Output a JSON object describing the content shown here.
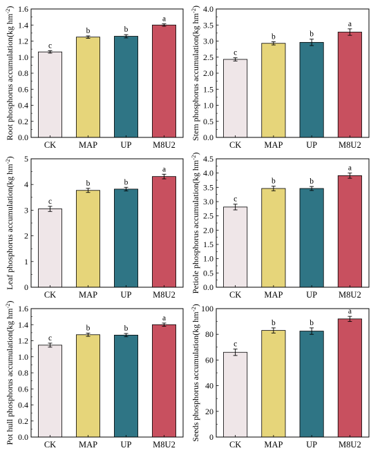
{
  "colors": {
    "CK": "#efe6e8",
    "MAP": "#e6d57a",
    "UP": "#2f7585",
    "M8U2": "#c8505f",
    "frame": "#000000"
  },
  "chart_data": [
    {
      "type": "bar",
      "categories": [
        "CK",
        "MAP",
        "UP",
        "M8U2"
      ],
      "values": [
        1.065,
        1.25,
        1.26,
        1.4
      ],
      "errors": [
        0.015,
        0.015,
        0.02,
        0.015
      ],
      "letters": [
        "c",
        "b",
        "b",
        "a"
      ],
      "ylabel_main": "Root phosphorus accumulation(kg hm",
      "ylabel_sup": "-2",
      "ylabel_end": ")",
      "ylim": [
        0,
        1.6
      ],
      "yticks": [
        0.0,
        0.2,
        0.4,
        0.6,
        0.8,
        1.0,
        1.2,
        1.4,
        1.6
      ],
      "ytick_labels": [
        "0.0",
        "0.2",
        "0.4",
        "0.6",
        "0.8",
        "1.0",
        "1.2",
        "1.4",
        "1.6"
      ]
    },
    {
      "type": "bar",
      "categories": [
        "CK",
        "MAP",
        "UP",
        "M8U2"
      ],
      "values": [
        2.43,
        2.93,
        2.96,
        3.28
      ],
      "errors": [
        0.05,
        0.05,
        0.1,
        0.1
      ],
      "letters": [
        "c",
        "b",
        "b",
        "a"
      ],
      "ylabel_main": "Stem phosphorus accumulation(kg hm",
      "ylabel_sup": "-2",
      "ylabel_end": ")",
      "ylim": [
        0,
        4.0
      ],
      "yticks": [
        0.0,
        0.5,
        1.0,
        1.5,
        2.0,
        2.5,
        3.0,
        3.5,
        4.0
      ],
      "ytick_labels": [
        "0.0",
        "0.5",
        "1.0",
        "1.5",
        "2.0",
        "2.5",
        "3.0",
        "3.5",
        "4.0"
      ]
    },
    {
      "type": "bar",
      "categories": [
        "CK",
        "MAP",
        "UP",
        "M8U2"
      ],
      "values": [
        3.05,
        3.77,
        3.82,
        4.31
      ],
      "errors": [
        0.1,
        0.08,
        0.07,
        0.09
      ],
      "letters": [
        "c",
        "b",
        "b",
        "a"
      ],
      "ylabel_main": "Leaf phosphorus accumulation(kg hm",
      "ylabel_sup": "-2",
      "ylabel_end": ")",
      "ylim": [
        0,
        5
      ],
      "yticks": [
        0,
        1,
        2,
        3,
        4,
        5
      ],
      "ytick_labels": [
        "0",
        "1",
        "2",
        "3",
        "4",
        "5"
      ]
    },
    {
      "type": "bar",
      "categories": [
        "CK",
        "MAP",
        "UP",
        "M8U2"
      ],
      "values": [
        2.81,
        3.46,
        3.46,
        3.91
      ],
      "errors": [
        0.1,
        0.08,
        0.07,
        0.09
      ],
      "letters": [
        "c",
        "b",
        "b",
        "a"
      ],
      "ylabel_main": "Petiole phosphorus accumulation(kg hm",
      "ylabel_sup": "-2",
      "ylabel_end": ")",
      "ylim": [
        0,
        4.5
      ],
      "yticks": [
        0.0,
        0.5,
        1.0,
        1.5,
        2.0,
        2.5,
        3.0,
        3.5,
        4.0,
        4.5
      ],
      "ytick_labels": [
        "0.0",
        "0.5",
        "1.0",
        "1.5",
        "2.0",
        "2.5",
        "3.0",
        "3.5",
        "4.0",
        "4.5"
      ]
    },
    {
      "type": "bar",
      "categories": [
        "CK",
        "MAP",
        "UP",
        "M8U2"
      ],
      "values": [
        1.145,
        1.275,
        1.27,
        1.4
      ],
      "errors": [
        0.025,
        0.02,
        0.02,
        0.02
      ],
      "letters": [
        "c",
        "b",
        "b",
        "a"
      ],
      "ylabel_main": "Pot hull phosphorus accumulation(kg hm",
      "ylabel_sup": "-2",
      "ylabel_end": ")",
      "ylim": [
        0,
        1.6
      ],
      "yticks": [
        0.0,
        0.2,
        0.4,
        0.6,
        0.8,
        1.0,
        1.2,
        1.4,
        1.6
      ],
      "ytick_labels": [
        "0.0",
        "0.2",
        "0.4",
        "0.6",
        "0.8",
        "1.0",
        "1.2",
        "1.4",
        "1.6"
      ]
    },
    {
      "type": "bar",
      "categories": [
        "CK",
        "MAP",
        "UP",
        "M8U2"
      ],
      "values": [
        66,
        83,
        82.5,
        92
      ],
      "errors": [
        2.5,
        2,
        2.5,
        2
      ],
      "letters": [
        "c",
        "b",
        "b",
        "a"
      ],
      "ylabel_main": "Seeds phosphorus accumulation(kg hm",
      "ylabel_sup": "-2",
      "ylabel_end": ")",
      "ylim": [
        0,
        100
      ],
      "yticks": [
        0,
        20,
        40,
        60,
        80,
        100
      ],
      "ytick_labels": [
        "0",
        "20",
        "40",
        "60",
        "80",
        "100"
      ]
    }
  ]
}
